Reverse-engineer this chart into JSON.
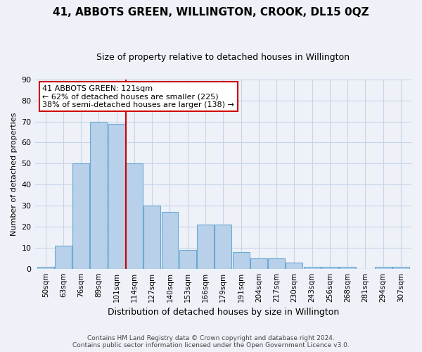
{
  "title": "41, ABBOTS GREEN, WILLINGTON, CROOK, DL15 0QZ",
  "subtitle": "Size of property relative to detached houses in Willington",
  "xlabel": "Distribution of detached houses by size in Willington",
  "ylabel": "Number of detached properties",
  "bar_labels": [
    "50sqm",
    "63sqm",
    "76sqm",
    "89sqm",
    "101sqm",
    "114sqm",
    "127sqm",
    "140sqm",
    "153sqm",
    "166sqm",
    "179sqm",
    "191sqm",
    "204sqm",
    "217sqm",
    "230sqm",
    "243sqm",
    "256sqm",
    "268sqm",
    "281sqm",
    "294sqm",
    "307sqm"
  ],
  "bar_heights": [
    1,
    11,
    50,
    70,
    69,
    50,
    30,
    27,
    9,
    21,
    21,
    8,
    5,
    5,
    3,
    1,
    1,
    1,
    0,
    1,
    1
  ],
  "bar_color": "#b8d0ea",
  "bar_edge_color": "#6aaad4",
  "ylim": [
    0,
    90
  ],
  "yticks": [
    0,
    10,
    20,
    30,
    40,
    50,
    60,
    70,
    80,
    90
  ],
  "red_line_index": 5,
  "annotation_text": "41 ABBOTS GREEN: 121sqm\n← 62% of detached houses are smaller (225)\n38% of semi-detached houses are larger (138) →",
  "annotation_box_color": "#ffffff",
  "annotation_box_edge_color": "#cc0000",
  "footer_line1": "Contains HM Land Registry data © Crown copyright and database right 2024.",
  "footer_line2": "Contains public sector information licensed under the Open Government Licence v3.0.",
  "bg_color": "#eef2f8",
  "plot_bg_color": "#eef2f8",
  "grid_color": "#c8d4e8",
  "red_line_color": "#cc0000",
  "title_fontsize": 11,
  "subtitle_fontsize": 9,
  "xlabel_fontsize": 9,
  "ylabel_fontsize": 8,
  "tick_fontsize": 8,
  "xtick_fontsize": 7.5,
  "annotation_fontsize": 8,
  "footer_fontsize": 6.5
}
